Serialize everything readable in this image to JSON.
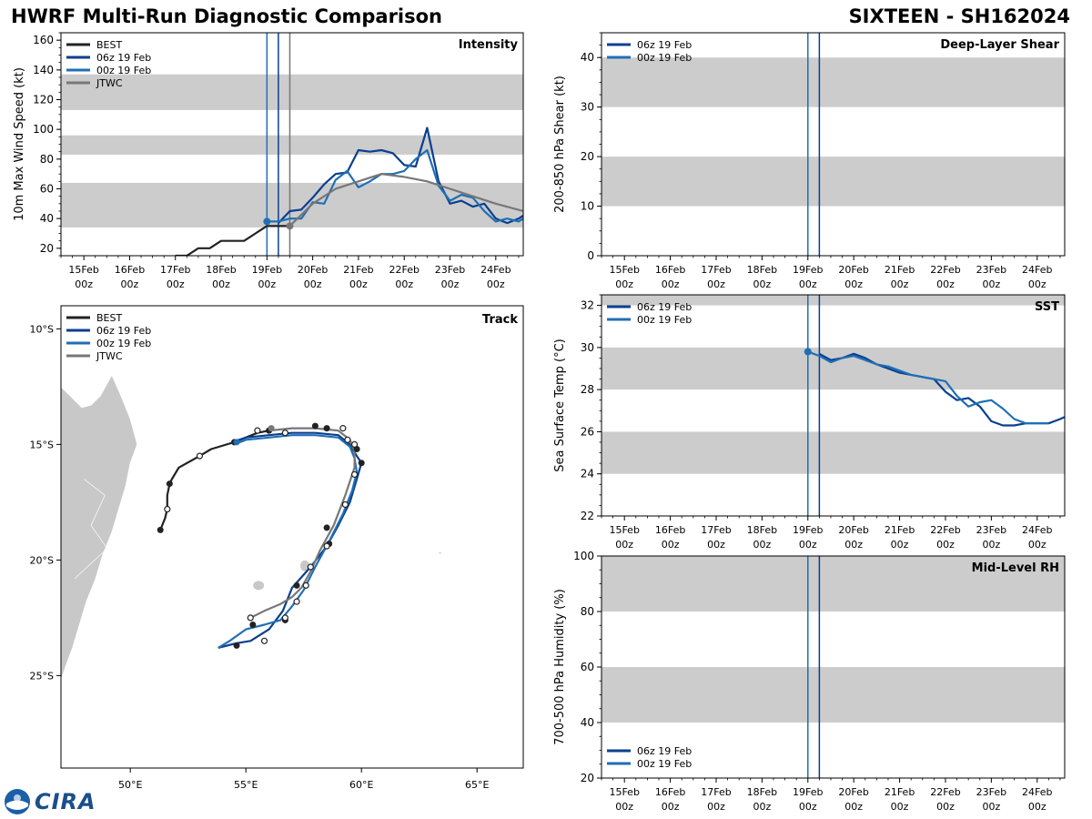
{
  "header": {
    "title": "HWRF Multi-Run Diagnostic Comparison",
    "storm": "SIXTEEN - SH162024"
  },
  "colors": {
    "best": "#222222",
    "run06": "#0a3f8f",
    "run00": "#1f6fb5",
    "jtwc": "#777777",
    "band": "#cccccc",
    "land": "#c8c8c8"
  },
  "time_ticks": [
    {
      "day": "15Feb",
      "hr": "00z"
    },
    {
      "day": "16Feb",
      "hr": "00z"
    },
    {
      "day": "17Feb",
      "hr": "00z"
    },
    {
      "day": "18Feb",
      "hr": "00z"
    },
    {
      "day": "19Feb",
      "hr": "00z"
    },
    {
      "day": "20Feb",
      "hr": "00z"
    },
    {
      "day": "21Feb",
      "hr": "00z"
    },
    {
      "day": "22Feb",
      "hr": "00z"
    },
    {
      "day": "23Feb",
      "hr": "00z"
    },
    {
      "day": "24Feb",
      "hr": "00z"
    }
  ],
  "logo": {
    "text": "CIRA",
    "icon": "noaa-logo-icon"
  },
  "chart_data": [
    {
      "id": "intensity",
      "type": "line",
      "title": "Intensity",
      "ylabel": "10m Max Wind Speed (kt)",
      "xlabel": "",
      "x_units": "days since 15Feb 00z",
      "xlim": [
        -0.5,
        9.6
      ],
      "ylim": [
        15,
        165
      ],
      "yticks": [
        20,
        40,
        60,
        80,
        100,
        120,
        140,
        160
      ],
      "bands": [
        [
          34,
          64
        ],
        [
          83,
          96
        ],
        [
          113,
          137
        ]
      ],
      "vlines": [
        {
          "x": 4.0,
          "color_key": "run00"
        },
        {
          "x": 4.25,
          "color_key": "run06"
        },
        {
          "x": 4.5,
          "color_key": "jtwc"
        }
      ],
      "legend": [
        "BEST",
        "06z 19 Feb",
        "00z 19 Feb",
        "JTWC"
      ],
      "series": [
        {
          "name": "BEST",
          "color_key": "best",
          "x": [
            2.0,
            2.25,
            2.5,
            2.75,
            3.0,
            3.25,
            3.5,
            3.75,
            4.0,
            4.25,
            4.5
          ],
          "y": [
            15,
            15,
            20,
            20,
            25,
            25,
            25,
            30,
            35,
            35,
            35
          ]
        },
        {
          "name": "06z 19 Feb",
          "color_key": "run06",
          "x": [
            4.25,
            4.5,
            4.75,
            5.0,
            5.25,
            5.5,
            5.75,
            6.0,
            6.25,
            6.5,
            6.75,
            7.0,
            7.25,
            7.5,
            7.75,
            8.0,
            8.25,
            8.5,
            8.75,
            9.0,
            9.25,
            9.5,
            9.6
          ],
          "y": [
            37,
            45,
            46,
            54,
            63,
            70,
            71,
            86,
            85,
            86,
            84,
            76,
            75,
            101,
            65,
            50,
            52,
            48,
            50,
            40,
            37,
            40,
            42
          ]
        },
        {
          "name": "00z 19 Feb",
          "color_key": "run00",
          "x": [
            4.0,
            4.25,
            4.5,
            4.75,
            5.0,
            5.25,
            5.5,
            5.75,
            6.0,
            6.25,
            6.5,
            6.75,
            7.0,
            7.25,
            7.5,
            7.75,
            8.0,
            8.25,
            8.5,
            8.75,
            9.0,
            9.25,
            9.5,
            9.6
          ],
          "y": [
            38,
            38,
            40,
            40,
            51,
            50,
            66,
            72,
            61,
            65,
            70,
            70,
            72,
            80,
            86,
            62,
            52,
            56,
            54,
            45,
            38,
            40,
            38,
            40
          ]
        },
        {
          "name": "JTWC",
          "color_key": "jtwc",
          "x": [
            4.5,
            5.0,
            5.5,
            6.0,
            6.5,
            7.0,
            7.5,
            8.0,
            8.5,
            9.0,
            9.6
          ],
          "y": [
            35,
            50,
            60,
            65,
            70,
            68,
            65,
            60,
            55,
            50,
            45
          ]
        }
      ],
      "markers": [
        {
          "x": 4.0,
          "y": 38,
          "color_key": "run00"
        },
        {
          "x": 4.5,
          "y": 35,
          "color_key": "jtwc"
        }
      ]
    },
    {
      "id": "shear",
      "type": "line",
      "title": "Deep-Layer Shear",
      "ylabel": "200-850 hPa Shear (kt)",
      "xlabel": "",
      "xlim": [
        -0.5,
        9.6
      ],
      "ylim": [
        0,
        45
      ],
      "yticks": [
        0,
        10,
        20,
        30,
        40
      ],
      "bands": [
        [
          10,
          20
        ],
        [
          30,
          40
        ]
      ],
      "vlines": [
        {
          "x": 4.0,
          "color_key": "run00"
        },
        {
          "x": 4.25,
          "color_key": "run06"
        }
      ],
      "legend": [
        "06z 19 Feb",
        "00z 19 Feb"
      ],
      "series": []
    },
    {
      "id": "sst",
      "type": "line",
      "title": "SST",
      "ylabel": "Sea Surface Temp (°C)",
      "xlabel": "",
      "xlim": [
        -0.5,
        9.6
      ],
      "ylim": [
        22,
        32.5
      ],
      "yticks": [
        22,
        24,
        26,
        28,
        30,
        32
      ],
      "bands": [
        [
          24,
          26
        ],
        [
          28,
          30
        ],
        [
          32,
          32.5
        ]
      ],
      "vlines": [
        {
          "x": 4.0,
          "color_key": "run00"
        },
        {
          "x": 4.25,
          "color_key": "run06"
        }
      ],
      "legend": [
        "06z 19 Feb",
        "00z 19 Feb"
      ],
      "series": [
        {
          "name": "06z 19 Feb",
          "color_key": "run06",
          "x": [
            4.25,
            4.5,
            4.75,
            5.0,
            5.25,
            5.5,
            5.75,
            6.0,
            6.25,
            6.5,
            6.75,
            7.0,
            7.25,
            7.5,
            7.75,
            8.0,
            8.25,
            8.5,
            8.75,
            9.0,
            9.25,
            9.5,
            9.6
          ],
          "y": [
            29.7,
            29.4,
            29.5,
            29.7,
            29.5,
            29.2,
            29.0,
            28.8,
            28.7,
            28.6,
            28.5,
            27.9,
            27.5,
            27.6,
            27.2,
            26.5,
            26.3,
            26.3,
            26.4,
            26.4,
            26.4,
            26.6,
            26.7
          ]
        },
        {
          "name": "00z 19 Feb",
          "color_key": "run00",
          "x": [
            4.0,
            4.25,
            4.5,
            4.75,
            5.0,
            5.25,
            5.5,
            5.75,
            6.0,
            6.25,
            6.5,
            6.75,
            7.0,
            7.25,
            7.5,
            7.75,
            8.0,
            8.25,
            8.5,
            8.75,
            9.0,
            9.25
          ],
          "y": [
            29.8,
            29.6,
            29.3,
            29.5,
            29.6,
            29.4,
            29.2,
            29.1,
            28.9,
            28.7,
            28.6,
            28.5,
            28.4,
            27.7,
            27.2,
            27.4,
            27.5,
            27.1,
            26.6,
            26.4,
            26.4,
            26.4
          ]
        }
      ],
      "markers": [
        {
          "x": 4.0,
          "y": 29.8,
          "color_key": "run00"
        }
      ]
    },
    {
      "id": "rh",
      "type": "line",
      "title": "Mid-Level RH",
      "ylabel": "700-500 hPa Humidity (%)",
      "xlabel": "",
      "xlim": [
        -0.5,
        9.6
      ],
      "ylim": [
        20,
        100
      ],
      "yticks": [
        20,
        40,
        60,
        80,
        100
      ],
      "bands": [
        [
          40,
          60
        ],
        [
          80,
          100
        ]
      ],
      "vlines": [
        {
          "x": 4.0,
          "color_key": "run00"
        },
        {
          "x": 4.25,
          "color_key": "run06"
        }
      ],
      "legend": [
        "06z 19 Feb",
        "00z 19 Feb"
      ],
      "legend_position": "bottom-left",
      "series": []
    },
    {
      "id": "track",
      "type": "scatter",
      "title": "Track",
      "xlabel": "Longitude",
      "ylabel": "Latitude",
      "xlim": [
        47.0,
        67.0
      ],
      "ylim": [
        -29.0,
        -9.0
      ],
      "xticks": [
        {
          "v": 50,
          "label": "50°E"
        },
        {
          "v": 55,
          "label": "55°E"
        },
        {
          "v": 60,
          "label": "60°E"
        },
        {
          "v": 65,
          "label": "65°E"
        }
      ],
      "yticks": [
        {
          "v": -10,
          "label": "10°S"
        },
        {
          "v": -15,
          "label": "15°S"
        },
        {
          "v": -20,
          "label": "20°S"
        },
        {
          "v": -25,
          "label": "25°S"
        }
      ],
      "legend": [
        "BEST",
        "06z 19 Feb",
        "00z 19 Feb",
        "JTWC"
      ],
      "series": [
        {
          "name": "BEST",
          "color_key": "best",
          "lon": [
            51.3,
            51.5,
            51.6,
            51.6,
            51.7,
            51.8,
            52.1,
            53.0,
            53.5,
            54.5,
            55.5,
            56.0
          ],
          "lat": [
            -18.7,
            -18.2,
            -17.8,
            -17.2,
            -16.7,
            -16.5,
            -16.0,
            -15.5,
            -15.2,
            -14.9,
            -14.5,
            -14.4
          ],
          "filled": [
            [
              51.3,
              -18.7
            ],
            [
              51.7,
              -16.7
            ],
            [
              54.5,
              -14.9
            ],
            [
              56.0,
              -14.4
            ]
          ],
          "open": [
            [
              51.6,
              -17.8
            ],
            [
              53.0,
              -15.5
            ],
            [
              55.5,
              -14.4
            ]
          ]
        },
        {
          "name": "06z 19 Feb",
          "color_key": "run06",
          "lon": [
            54.4,
            55.0,
            56.0,
            57.0,
            58.0,
            59.0,
            59.5,
            59.8,
            60.0,
            59.8,
            59.5,
            59.0,
            58.5,
            57.8,
            57.0,
            56.6,
            56.0,
            55.2,
            54.6,
            53.8
          ],
          "lat": [
            -14.9,
            -14.7,
            -14.6,
            -14.5,
            -14.5,
            -14.6,
            -15.0,
            -15.5,
            -15.8,
            -16.5,
            -17.5,
            -18.5,
            -19.4,
            -20.3,
            -21.2,
            -22.2,
            -23.0,
            -23.5,
            -23.6,
            -23.8
          ],
          "filled": [
            [
              58.0,
              -14.2
            ],
            [
              58.5,
              -14.3
            ],
            [
              59.8,
              -15.2
            ],
            [
              60.0,
              -15.8
            ],
            [
              58.5,
              -18.6
            ],
            [
              58.6,
              -19.3
            ],
            [
              57.2,
              -21.1
            ],
            [
              56.7,
              -22.6
            ],
            [
              55.3,
              -22.8
            ],
            [
              54.6,
              -23.7
            ]
          ],
          "open": []
        },
        {
          "name": "00z 19 Feb",
          "color_key": "run00",
          "lon": [
            54.5,
            55.0,
            56.0,
            57.0,
            58.0,
            59.0,
            59.5,
            59.7,
            59.8,
            59.6,
            59.2,
            58.6,
            58.0,
            57.5,
            57.0,
            56.5,
            55.8,
            55.0,
            54.3,
            53.8
          ],
          "lat": [
            -15.0,
            -14.8,
            -14.7,
            -14.6,
            -14.6,
            -14.7,
            -15.1,
            -15.6,
            -16.2,
            -17.0,
            -18.0,
            -19.2,
            -20.3,
            -21.3,
            -22.0,
            -22.6,
            -22.8,
            -23.0,
            -23.5,
            -23.8
          ],
          "filled": [
            [
              54.6,
              -14.9
            ]
          ],
          "open": [
            [
              56.7,
              -14.5
            ],
            [
              59.2,
              -14.3
            ],
            [
              59.4,
              -14.8
            ],
            [
              59.7,
              -15.0
            ],
            [
              59.7,
              -16.3
            ],
            [
              59.3,
              -17.6
            ],
            [
              58.5,
              -19.4
            ],
            [
              57.8,
              -20.3
            ],
            [
              57.6,
              -21.1
            ],
            [
              57.2,
              -21.8
            ],
            [
              56.7,
              -22.5
            ],
            [
              55.8,
              -23.5
            ]
          ]
        },
        {
          "name": "JTWC",
          "color_key": "jtwc",
          "lon": [
            56.0,
            57.0,
            58.0,
            59.0,
            59.5,
            59.7,
            59.7,
            59.3,
            58.8,
            58.2,
            57.8,
            57.4,
            57.0,
            56.5,
            55.8,
            55.2
          ],
          "lat": [
            -14.4,
            -14.3,
            -14.3,
            -14.4,
            -14.8,
            -15.3,
            -16.0,
            -17.2,
            -18.5,
            -19.6,
            -20.5,
            -21.2,
            -21.6,
            -21.9,
            -22.2,
            -22.5
          ],
          "filled": [
            [
              56.1,
              -14.3
            ]
          ],
          "open": [
            [
              55.2,
              -22.5
            ]
          ]
        }
      ]
    }
  ]
}
